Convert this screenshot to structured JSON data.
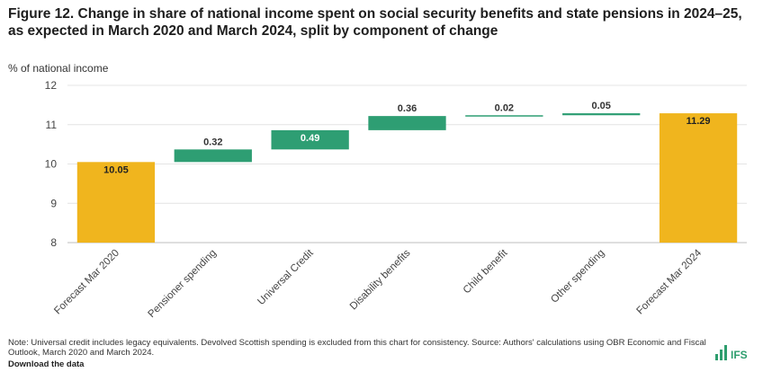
{
  "title": "Figure 12. Change in share of national income spent on social security benefits and state pensions in 2024–25, as expected in March 2020 and March 2024, split by component of change",
  "units_label": "% of national income",
  "note": "Note: Universal credit includes legacy equivalents. Devolved Scottish spending is excluded from this chart for consistency. Source: Authors' calculations using OBR Economic and Fiscal Outlook, March 2020 and March 2024.",
  "download_label": "Download the data",
  "logo_text": "IFS",
  "colors": {
    "total": "#f0b51e",
    "change": "#2e9e73",
    "grid": "#e4e4e4"
  },
  "chart_data": {
    "type": "bar",
    "subtype": "waterfall",
    "ylim": [
      8,
      12
    ],
    "yticks": [
      8,
      9,
      10,
      11,
      12
    ],
    "ylabel": "% of national income",
    "categories": [
      "Forecast Mar 2020",
      "Pensioner spending",
      "Universal Credit",
      "Disability benefits",
      "Child benefit",
      "Other spending",
      "Forecast Mar 2024"
    ],
    "bars": [
      {
        "kind": "total",
        "start": 8,
        "end": 10.05,
        "label": "10.05"
      },
      {
        "kind": "change",
        "start": 10.05,
        "end": 10.37,
        "label": "0.32"
      },
      {
        "kind": "change",
        "start": 10.37,
        "end": 10.86,
        "label": "0.49"
      },
      {
        "kind": "change",
        "start": 10.86,
        "end": 11.22,
        "label": "0.36"
      },
      {
        "kind": "change",
        "start": 11.22,
        "end": 11.24,
        "label": "0.02"
      },
      {
        "kind": "change",
        "start": 11.24,
        "end": 11.29,
        "label": "0.05"
      },
      {
        "kind": "total",
        "start": 8,
        "end": 11.29,
        "label": "11.29"
      }
    ]
  }
}
